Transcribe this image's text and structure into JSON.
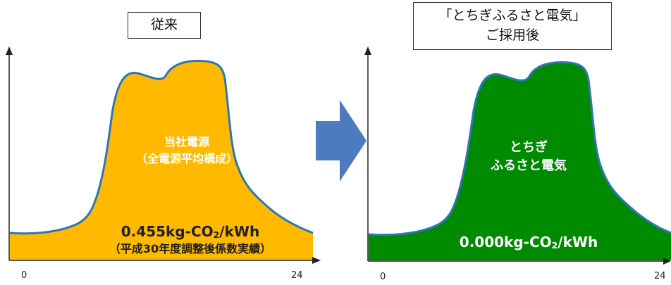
{
  "colors": {
    "current_fill": "#FFBA00",
    "renewable_fill": "#008A00",
    "curve_stroke": "#2E75B6",
    "arrow_fill": "#4E7BC0",
    "axis": "#222222"
  },
  "left_panel": {
    "label": "従来",
    "source_line1": "当社電源",
    "source_line2": "（全電源平均構成）",
    "emission_prefix": "0.455kg-CO",
    "emission_sub": "2",
    "emission_suffix": "/kWh",
    "emission_note": "（平成30年度調整後係数実績）",
    "x_start": "0",
    "x_end": "24"
  },
  "right_panel": {
    "label_line1": "「とちぎふるさと電気」",
    "label_line2": "ご採用後",
    "source_line1": "とちぎ",
    "source_line2": "ふるさと電気",
    "emission_prefix": "0.000kg-CO",
    "emission_sub": "2",
    "emission_suffix": "/kWh",
    "x_start": "0",
    "x_end": "24"
  },
  "transition_icon": "right-arrow-icon"
}
